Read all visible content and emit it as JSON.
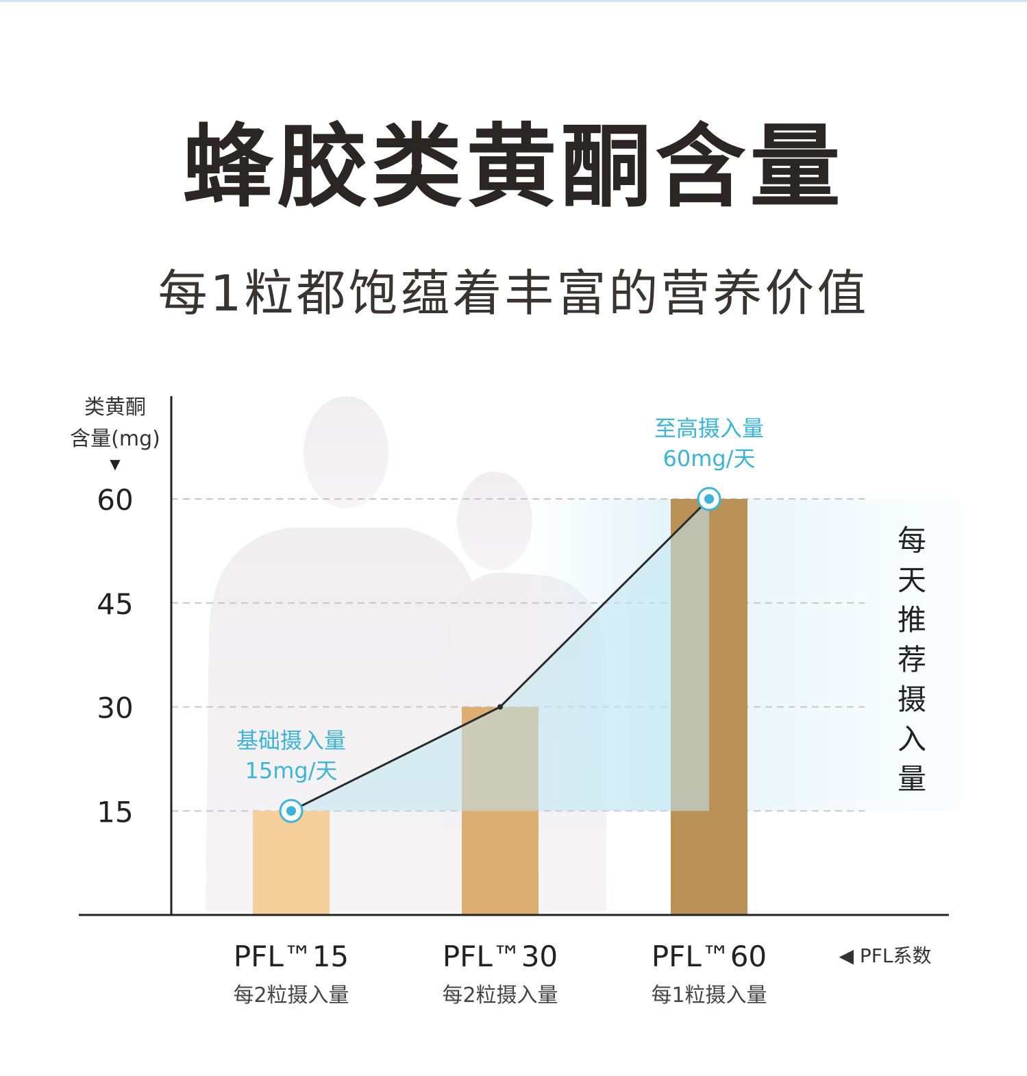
{
  "title": "蜂胶类黄酮含量",
  "subtitle": "每1粒都饱蕴着丰富的营养价值",
  "side_label": "每天推荐摄入量",
  "chart_data": {
    "type": "bar",
    "ylabel": [
      "类黄酮",
      "含量(mg)"
    ],
    "ylabel_marker": "▼",
    "yticks": [
      60,
      45,
      30,
      15
    ],
    "ylim": [
      0,
      60
    ],
    "categories": [
      {
        "name": "PFL™15",
        "sub": "每2粒摄入量"
      },
      {
        "name": "PFL™30",
        "sub": "每2粒摄入量"
      },
      {
        "name": "PFL™60",
        "sub": "每1粒摄入量"
      }
    ],
    "values": [
      15,
      30,
      60
    ],
    "bar_colors": [
      "#f6cf9a",
      "#ddae72",
      "#ba9258"
    ],
    "line_color": "#2b2b2b",
    "accent_color": "#3bb4d7",
    "x_axis_note": "◀ PFL系数",
    "annotations": [
      {
        "index": 0,
        "lines": [
          "基础摄入量",
          "15mg/天"
        ]
      },
      {
        "index": 2,
        "lines": [
          "至高摄入量",
          "60mg/天"
        ]
      }
    ],
    "grid": "dashed horizontal"
  }
}
